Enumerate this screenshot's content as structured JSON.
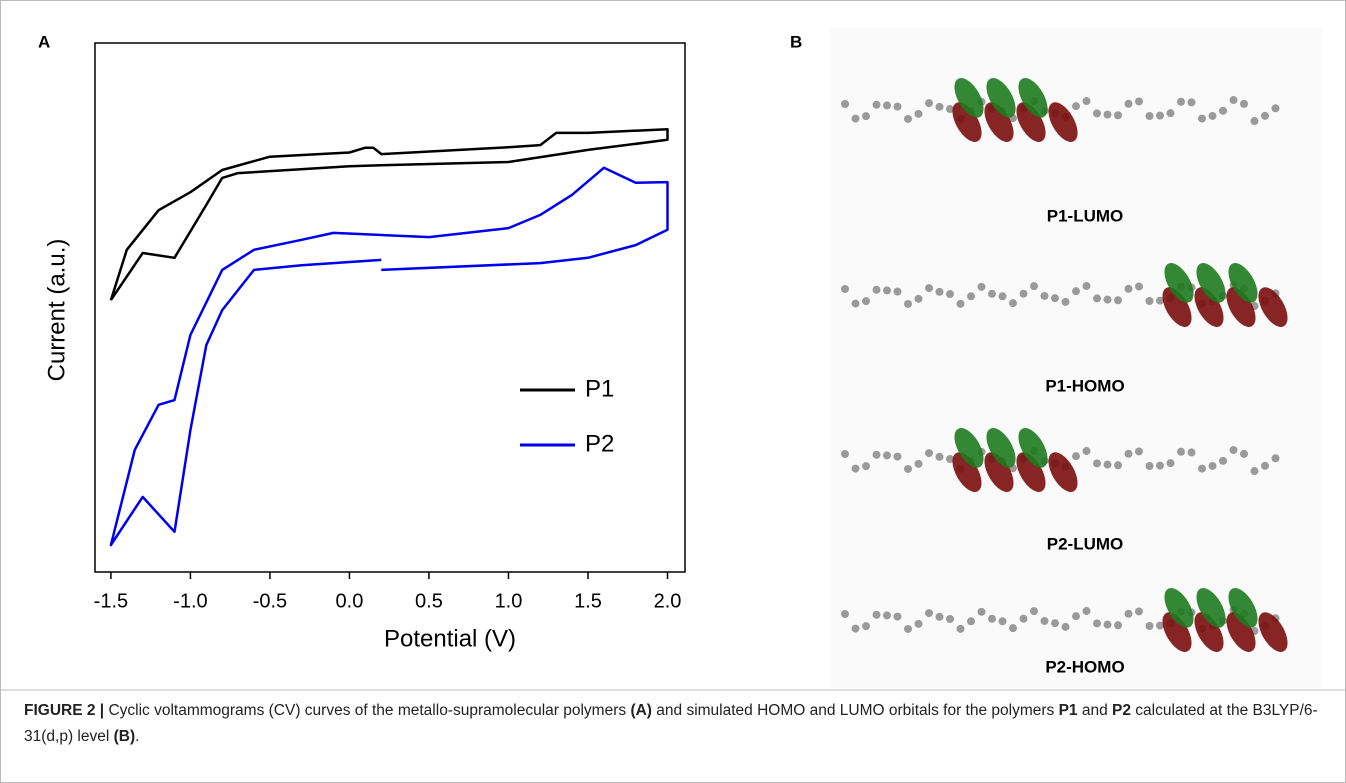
{
  "panels": {
    "a": "A",
    "b": "B"
  },
  "chart_data": {
    "type": "line",
    "xlabel": "Potential (V)",
    "ylabel": "Current (a.u.)",
    "xlim": [
      -1.6,
      2.11
    ],
    "ylim": [
      0,
      10
    ],
    "xticks": [
      -1.5,
      {
        "value": -1,
        "label": "-1.0"
      },
      -0.5,
      {
        "value": 0,
        "label": "0.0"
      },
      0.5,
      {
        "value": 1,
        "label": "1.0"
      },
      1.5,
      {
        "value": 2,
        "label": "2.0"
      }
    ],
    "series": [
      {
        "name": "P1",
        "color": "#000000",
        "x": [
          -1.5,
          -1.3,
          -1.1,
          -0.9,
          -0.8,
          -0.7,
          0,
          0.2,
          1.0,
          1.5,
          2.0,
          2.0,
          1.5,
          1.3,
          1.2,
          1.0,
          0.2,
          0.15,
          0.1,
          0.0,
          -0.5,
          -0.8,
          -1.0,
          -1.2,
          -1.4,
          -1.5
        ],
        "values": [
          5.14,
          6.03,
          5.94,
          6.94,
          7.45,
          7.54,
          7.67,
          7.69,
          7.75,
          7.98,
          8.17,
          8.37,
          8.3,
          8.3,
          8.07,
          8.03,
          7.9,
          8.02,
          8.02,
          7.93,
          7.85,
          7.6,
          7.18,
          6.84,
          6.09,
          5.14
        ]
      },
      {
        "name": "P2",
        "color": "#0000ee",
        "x": [
          0.2,
          -0.3,
          -0.6,
          -0.7,
          -0.8,
          -0.9,
          -1.0,
          -1.1,
          -1.3,
          -1.5,
          -1.35,
          -1.2,
          -1.1,
          -1.0,
          -0.8,
          -0.6,
          -0.3,
          -0.1,
          0.5,
          1.0,
          1.2,
          1.4,
          1.6,
          1.8,
          2.0,
          2.0,
          1.8,
          1.5,
          1.2,
          0.2
        ],
        "values": [
          5.9,
          5.8,
          5.71,
          5.33,
          4.95,
          4.29,
          2.68,
          0.76,
          1.42,
          0.51,
          2.31,
          3.16,
          3.25,
          4.48,
          5.71,
          6.09,
          6.28,
          6.41,
          6.33,
          6.5,
          6.75,
          7.13,
          7.64,
          7.36,
          7.37,
          6.47,
          6.18,
          5.94,
          5.84,
          5.71
        ]
      }
    ]
  },
  "orbitals": [
    "P1-LUMO",
    "P1-HOMO",
    "P2-LUMO",
    "P2-HOMO"
  ],
  "caption": [
    {
      "text": "FIGURE 2 |",
      "bold": true
    },
    {
      "text": " Cyclic voltammograms (CV) curves of the metallo-supramolecular polymers ",
      "bold": false
    },
    {
      "text": "(A)",
      "bold": true
    },
    {
      "text": " and simulated HOMO and LUMO orbitals for the polymers ",
      "bold": false
    },
    {
      "text": "P1",
      "bold": true
    },
    {
      "text": " and ",
      "bold": false
    },
    {
      "text": "P2",
      "bold": true
    },
    {
      "text": " calculated at the B3LYP/6-31(d,p) level ",
      "bold": false
    },
    {
      "text": "(B)",
      "bold": true
    },
    {
      "text": ".",
      "bold": false
    }
  ]
}
